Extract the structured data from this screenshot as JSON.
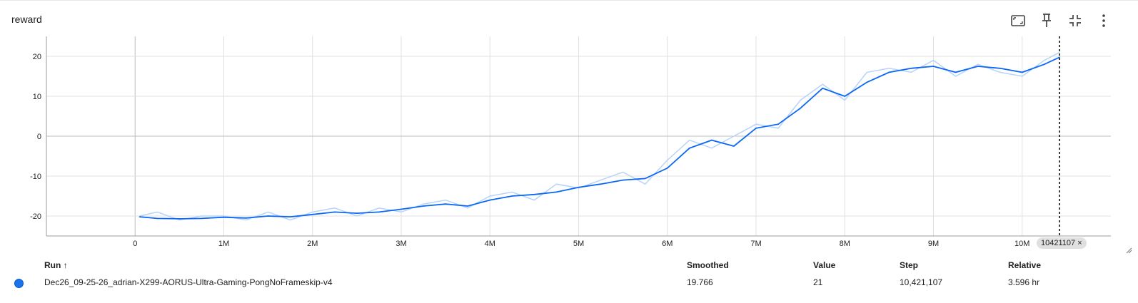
{
  "card": {
    "title": "reward"
  },
  "toolbar": {
    "icons": [
      "fit-domain-icon",
      "pin-icon",
      "collapse-icon",
      "more-vert-icon"
    ]
  },
  "chart_data": {
    "type": "line",
    "title": "reward",
    "xlabel": "",
    "ylabel": "",
    "x_ticks": [
      0,
      1000000,
      2000000,
      3000000,
      4000000,
      5000000,
      6000000,
      7000000,
      8000000,
      9000000,
      10000000
    ],
    "x_tick_labels": [
      "0",
      "1M",
      "2M",
      "3M",
      "4M",
      "5M",
      "6M",
      "7M",
      "8M",
      "9M",
      "10M"
    ],
    "y_ticks": [
      -20,
      -10,
      0,
      10,
      20
    ],
    "y_tick_labels": [
      "-20",
      "-10",
      "0",
      "10",
      "20"
    ],
    "xlim": [
      -1000000,
      11000000
    ],
    "ylim": [
      -25,
      25
    ],
    "grid": true,
    "cursor_step": 10421107,
    "cursor_label": "10421107",
    "series": [
      {
        "name": "Dec26_09-25-26_adrian-X299-AORUS-Ultra-Gaming-PongNoFrameskip-v4",
        "color": "#0b67f5",
        "raw_color": "#b7d3fa",
        "x": [
          50000,
          250000,
          500000,
          750000,
          1000000,
          1250000,
          1500000,
          1750000,
          2000000,
          2250000,
          2500000,
          2750000,
          3000000,
          3250000,
          3500000,
          3750000,
          4000000,
          4250000,
          4500000,
          4750000,
          5000000,
          5250000,
          5500000,
          5750000,
          6000000,
          6250000,
          6500000,
          6750000,
          7000000,
          7250000,
          7500000,
          7750000,
          8000000,
          8250000,
          8500000,
          8750000,
          9000000,
          9250000,
          9500000,
          9750000,
          10000000,
          10250000,
          10421107
        ],
        "smoothed": [
          -20.2,
          -20.6,
          -20.7,
          -20.6,
          -20.3,
          -20.5,
          -20.0,
          -20.2,
          -19.6,
          -19.0,
          -19.3,
          -19.0,
          -18.3,
          -17.5,
          -17.0,
          -17.5,
          -16.0,
          -15.0,
          -14.6,
          -14.0,
          -12.8,
          -12.0,
          -11.0,
          -10.6,
          -8.0,
          -3.0,
          -1.0,
          -2.5,
          2.0,
          3.0,
          7.0,
          12.0,
          10.0,
          13.5,
          16.0,
          17.0,
          17.5,
          16.0,
          17.5,
          17.0,
          16.0,
          18.0,
          19.766
        ],
        "raw": [
          -20,
          -19,
          -21,
          -20,
          -20,
          -21,
          -19,
          -21,
          -19,
          -18,
          -20,
          -18,
          -19,
          -17,
          -16,
          -18,
          -15,
          -14,
          -16,
          -12,
          -13,
          -11,
          -9,
          -12,
          -6,
          -1,
          -3,
          0,
          3,
          2,
          9,
          13,
          9,
          16,
          17,
          16,
          19,
          15,
          18,
          16,
          15,
          19,
          21
        ]
      }
    ]
  },
  "table": {
    "headers": {
      "run": "Run",
      "sort_arrow": "↑",
      "smoothed": "Smoothed",
      "value": "Value",
      "step": "Step",
      "relative": "Relative"
    },
    "rows": [
      {
        "color": "#1a73e8",
        "run": "Dec26_09-25-26_adrian-X299-AORUS-Ultra-Gaming-PongNoFrameskip-v4",
        "smoothed": "19.766",
        "value": "21",
        "step": "10,421,107",
        "relative": "3.596 hr"
      }
    ]
  },
  "marker": {
    "label": "10421107",
    "close": "×"
  }
}
